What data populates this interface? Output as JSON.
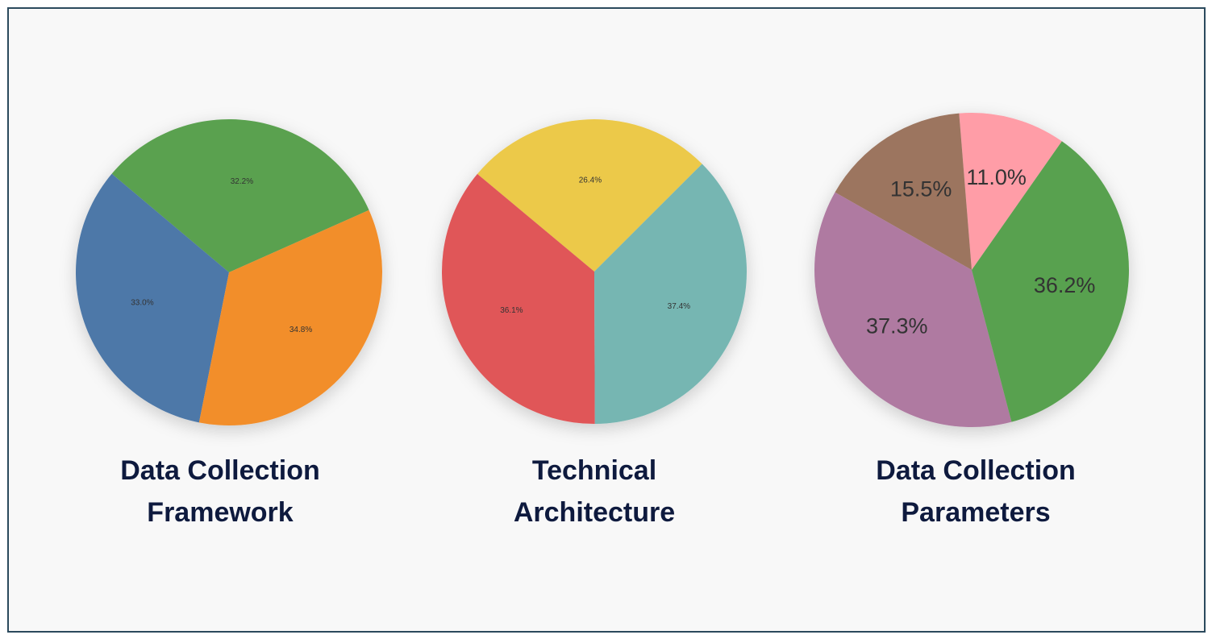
{
  "chart_data": [
    {
      "type": "pie",
      "title": "Data Collection Framework",
      "values": [
        32.2,
        33.0,
        34.8
      ],
      "value_labels": [
        "32.2%",
        "33.0%",
        "34.8%"
      ],
      "colors": [
        "#5aa14f",
        "#4e78a8",
        "#f28e2c"
      ]
    },
    {
      "type": "pie",
      "title": "Technical Architecture",
      "values": [
        26.4,
        36.1,
        37.4
      ],
      "value_labels": [
        "26.4%",
        "36.1%",
        "37.4%"
      ],
      "colors": [
        "#ecc94a",
        "#e05759",
        "#76b6b2"
      ]
    },
    {
      "type": "pie",
      "title": "Data Collection Parameters",
      "values": [
        11.0,
        15.5,
        37.3,
        36.2
      ],
      "value_labels": [
        "11.0%",
        "15.5%",
        "37.3%",
        "36.2%"
      ],
      "colors": [
        "#ff9da7",
        "#9c755f",
        "#af7aa1",
        "#59a14f"
      ]
    }
  ]
}
